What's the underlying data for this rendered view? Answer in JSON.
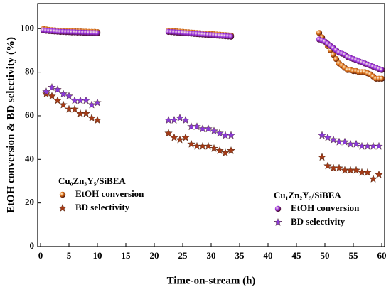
{
  "chart_data": {
    "type": "scatter",
    "xlabel": "Time-on-stream (h)",
    "ylabel": "EtOH conversion & BD selectivity (%)",
    "xlim": [
      -0.5,
      60.5
    ],
    "ylim": [
      0,
      111.5
    ],
    "xticks": [
      0,
      5,
      10,
      15,
      20,
      25,
      30,
      35,
      40,
      45,
      50,
      55,
      60
    ],
    "yticks": [
      0,
      20,
      40,
      60,
      80,
      100
    ],
    "legend_groups": [
      {
        "title": "Cu₀Zn₃Y₅/SiBEA",
        "series": [
          0,
          1
        ],
        "corner": "lower left"
      },
      {
        "title": "Cu₁Zn₂Y₅/SiBEA",
        "series": [
          2,
          3
        ],
        "corner": "lower right"
      }
    ],
    "series": [
      {
        "name": "EtOH conversion",
        "color": "#e0741a",
        "marker": "circle",
        "x": [
          0.5,
          1,
          1.5,
          2,
          2.5,
          3,
          3.5,
          4,
          4.5,
          5,
          5.5,
          6,
          6.5,
          7,
          7.5,
          8,
          8.5,
          9,
          9.5,
          10,
          22.5,
          23,
          23.5,
          24,
          24.5,
          25,
          25.5,
          26,
          26.5,
          27,
          27.5,
          28,
          28.5,
          29,
          29.5,
          30,
          30.5,
          31,
          31.5,
          32,
          32.5,
          33,
          33.5,
          49,
          49.5,
          50,
          50.5,
          51,
          51.5,
          52,
          52.5,
          53,
          53.5,
          54,
          54.5,
          55,
          55.5,
          56,
          56.5,
          57,
          57.5,
          58,
          58.5,
          59,
          59.5,
          60
        ],
        "y": [
          99.8,
          99.6,
          99.4,
          99.3,
          99.2,
          99.1,
          99,
          99,
          98.9,
          98.9,
          98.8,
          98.8,
          98.7,
          98.7,
          98.6,
          98.6,
          98.5,
          98.5,
          98.5,
          98.4,
          99,
          98.9,
          98.8,
          98.7,
          98.6,
          98.5,
          98.4,
          98.3,
          98.2,
          98.1,
          98,
          97.9,
          97.8,
          97.7,
          97.6,
          97.5,
          97.4,
          97.3,
          97.2,
          97.1,
          97,
          96.9,
          96.8,
          98,
          96,
          94,
          92,
          90,
          88,
          86,
          84,
          83,
          82,
          81,
          81,
          80.5,
          80.5,
          80,
          80,
          80,
          79.5,
          79,
          78,
          77,
          77,
          77
        ]
      },
      {
        "name": "BD selectivity",
        "color": "#a33a16",
        "marker": "star",
        "x": [
          1,
          2,
          3,
          4,
          5,
          6,
          7,
          8,
          9,
          10,
          22.5,
          23.5,
          24.5,
          25.5,
          26.5,
          27.5,
          28.5,
          29.5,
          30.5,
          31.5,
          32.5,
          33.5,
          49.5,
          50.5,
          51.5,
          52.5,
          53.5,
          54.5,
          55.5,
          56.5,
          57.5,
          58.5,
          59.5
        ],
        "y": [
          70,
          69,
          67,
          65,
          63,
          63,
          61,
          61,
          59,
          58,
          52,
          50,
          49,
          50,
          47,
          46,
          46,
          46,
          45,
          44,
          43,
          44,
          41,
          37,
          36,
          36,
          35,
          35,
          35,
          34,
          34,
          31,
          33
        ]
      },
      {
        "name": "EtOH conversion",
        "color": "#9a2fe0",
        "marker": "circle",
        "x": [
          0.5,
          1,
          1.5,
          2,
          2.5,
          3,
          3.5,
          4,
          4.5,
          5,
          5.5,
          6,
          6.5,
          7,
          7.5,
          8,
          8.5,
          9,
          9.5,
          10,
          22.5,
          23,
          23.5,
          24,
          24.5,
          25,
          25.5,
          26,
          26.5,
          27,
          27.5,
          28,
          28.5,
          29,
          29.5,
          30,
          30.5,
          31,
          31.5,
          32,
          32.5,
          33,
          33.5,
          49,
          49.5,
          50,
          50.5,
          51,
          51.5,
          52,
          52.5,
          53,
          53.5,
          54,
          54.5,
          55,
          55.5,
          56,
          56.5,
          57,
          57.5,
          58,
          58.5,
          59,
          59.5,
          60
        ],
        "y": [
          99.2,
          99,
          98.9,
          98.8,
          98.7,
          98.6,
          98.5,
          98.5,
          98.4,
          98.4,
          98.3,
          98.3,
          98.2,
          98.2,
          98.1,
          98.1,
          98,
          98,
          98,
          97.9,
          98.5,
          98.4,
          98.3,
          98.2,
          98.1,
          98,
          97.9,
          97.8,
          97.7,
          97.6,
          97.5,
          97.4,
          97.3,
          97.2,
          97.1,
          97,
          96.9,
          96.8,
          96.7,
          96.6,
          96.5,
          96.4,
          96.3,
          95,
          94.5,
          94,
          93,
          92,
          91,
          90,
          89,
          88.5,
          88,
          87,
          86.5,
          86,
          85.5,
          85,
          84.5,
          84,
          83.5,
          83,
          82.5,
          82,
          81.5,
          81
        ]
      },
      {
        "name": "BD selectivity",
        "color": "#8a3ad6",
        "marker": "star",
        "x": [
          1,
          2,
          3,
          4,
          5,
          6,
          7,
          8,
          9,
          10,
          22.5,
          23.5,
          24.5,
          25.5,
          26.5,
          27.5,
          28.5,
          29.5,
          30.5,
          31.5,
          32.5,
          33.5,
          49.5,
          50.5,
          51.5,
          52.5,
          53.5,
          54.5,
          55.5,
          56.5,
          57.5,
          58.5,
          59.5
        ],
        "y": [
          71,
          73,
          72,
          70,
          69,
          67,
          67,
          67,
          65,
          66,
          58,
          58,
          59,
          58,
          55,
          55,
          54,
          54,
          53,
          52,
          51,
          51,
          51,
          50,
          49,
          48,
          48,
          47,
          47,
          46,
          46,
          46,
          46
        ]
      }
    ]
  }
}
